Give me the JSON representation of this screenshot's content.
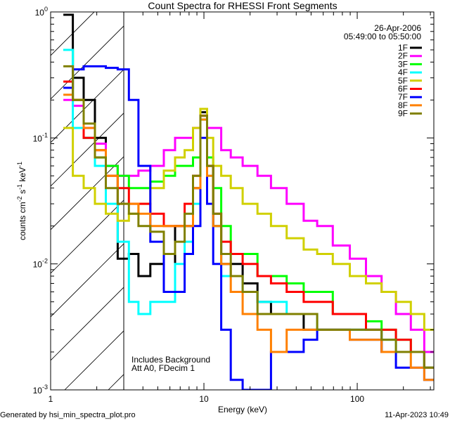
{
  "chart_data": {
    "type": "line",
    "title": "Count Spectra for RHESSI Front Segments",
    "xlabel": "Energy (keV)",
    "ylabel": "counts cm^-2 s^-1 keV^-1",
    "ylabel_parts": {
      "a": "counts cm",
      "b": "-2",
      "c": " s",
      "d": "-1",
      "e": " keV",
      "f": "-1"
    },
    "xscale": "log",
    "yscale": "log",
    "xlim": [
      1,
      316
    ],
    "ylim": [
      0.001,
      1
    ],
    "x_tick_labels": [
      "1",
      "10",
      "100"
    ],
    "y_tick_labels": [
      {
        "base": "10",
        "exp": "0"
      },
      {
        "base": "10",
        "exp": "-1"
      },
      {
        "base": "10",
        "exp": "-2"
      },
      {
        "base": "10",
        "exp": "-3"
      }
    ],
    "date": "26-Apr-2006",
    "time_range": "05:49:00 to 05:50:00",
    "annotations": [
      "Includes Background",
      "Att A0, FDecim 1"
    ],
    "hatched_region_keV": [
      1,
      3
    ],
    "legend_position": "top-right",
    "x": [
      1.3,
      1.5,
      1.8,
      2.1,
      2.5,
      3,
      3.5,
      4,
      5,
      6,
      7,
      8,
      9,
      10,
      11,
      12,
      14,
      16,
      20,
      25,
      30,
      40,
      50,
      60,
      80,
      100,
      130,
      160,
      200,
      250,
      300
    ],
    "series": [
      {
        "name": "1F",
        "color": "#000000",
        "values": [
          0.95,
          0.3,
          0.2,
          0.1,
          0.06,
          0.011,
          0.012,
          0.008,
          0.01,
          0.006,
          0.02,
          0.02,
          0.04,
          0.16,
          0.06,
          0.02,
          0.01,
          0.01,
          0.007,
          0.005,
          0.004,
          0.004,
          0.003,
          0.003,
          0.003,
          0.003,
          0.003,
          0.002,
          0.002,
          0.002,
          0.0015
        ]
      },
      {
        "name": "2F",
        "color": "#ff00ff",
        "values": [
          0.2,
          0.18,
          0.12,
          0.09,
          0.06,
          0.05,
          0.05,
          0.055,
          0.06,
          0.08,
          0.1,
          0.1,
          0.12,
          0.15,
          0.12,
          0.12,
          0.08,
          0.07,
          0.06,
          0.05,
          0.04,
          0.03,
          0.022,
          0.02,
          0.014,
          0.011,
          0.008,
          0.006,
          0.004,
          0.003,
          0.002
        ]
      },
      {
        "name": "3F",
        "color": "#00ff00",
        "values": [
          0.5,
          0.2,
          0.1,
          0.07,
          0.06,
          0.05,
          0.04,
          0.04,
          0.045,
          0.05,
          0.06,
          0.06,
          0.07,
          0.14,
          0.07,
          0.04,
          0.02,
          0.012,
          0.012,
          0.008,
          0.008,
          0.007,
          0.006,
          0.006,
          0.004,
          0.004,
          0.0035,
          0.003,
          0.0025,
          0.002,
          0.0015
        ]
      },
      {
        "name": "4F",
        "color": "#00ffff",
        "values": [
          0.5,
          0.12,
          0.1,
          0.06,
          0.03,
          0.015,
          0.005,
          0.004,
          0.005,
          0.005,
          0.01,
          0.015,
          0.03,
          0.14,
          0.05,
          0.02,
          0.008,
          0.008,
          0.006,
          0.005,
          0.005,
          0.004,
          0.004,
          0.003,
          0.003,
          0.003,
          0.003,
          0.0025,
          0.002,
          0.002,
          0.0015
        ]
      },
      {
        "name": "5F",
        "color": "#d0d000",
        "values": [
          0.12,
          0.05,
          0.04,
          0.03,
          0.025,
          0.022,
          0.025,
          0.03,
          0.04,
          0.055,
          0.07,
          0.08,
          0.12,
          0.17,
          0.1,
          0.06,
          0.05,
          0.04,
          0.03,
          0.025,
          0.02,
          0.016,
          0.013,
          0.012,
          0.01,
          0.008,
          0.007,
          0.006,
          0.005,
          0.004,
          0.003
        ]
      },
      {
        "name": "6F",
        "color": "#ff0000",
        "values": [
          0.28,
          0.2,
          0.1,
          0.08,
          0.05,
          0.04,
          0.03,
          0.03,
          0.025,
          0.02,
          0.02,
          0.03,
          0.05,
          0.15,
          0.06,
          0.025,
          0.015,
          0.012,
          0.01,
          0.008,
          0.007,
          0.006,
          0.005,
          0.005,
          0.004,
          0.004,
          0.003,
          0.003,
          0.0025,
          0.002,
          0.0015
        ]
      },
      {
        "name": "7F",
        "color": "#0000ff",
        "values": [
          0.25,
          0.35,
          0.37,
          0.37,
          0.36,
          0.35,
          0.2,
          0.06,
          0.015,
          0.006,
          0.006,
          0.012,
          0.02,
          0.1,
          0.03,
          0.01,
          0.003,
          0.0012,
          0.001,
          0.001,
          0.002,
          0.002,
          0.0025,
          0.003,
          0.003,
          0.0025,
          0.0025,
          0.002,
          0.0015,
          0.0015,
          0.0012
        ]
      },
      {
        "name": "8F",
        "color": "#ff8000",
        "values": [
          0.22,
          0.2,
          0.12,
          0.08,
          0.05,
          0.03,
          0.03,
          0.025,
          0.02,
          0.02,
          0.02,
          0.02,
          0.04,
          0.14,
          0.05,
          0.02,
          0.01,
          0.006,
          0.004,
          0.003,
          0.002,
          0.003,
          0.003,
          0.003,
          0.003,
          0.0025,
          0.0025,
          0.002,
          0.002,
          0.0015,
          0.0012
        ]
      },
      {
        "name": "9F",
        "color": "#808000",
        "values": [
          0.37,
          0.2,
          0.13,
          0.07,
          0.04,
          0.03,
          0.025,
          0.02,
          0.018,
          0.012,
          0.015,
          0.025,
          0.05,
          0.15,
          0.06,
          0.025,
          0.012,
          0.008,
          0.006,
          0.004,
          0.004,
          0.004,
          0.004,
          0.003,
          0.003,
          0.003,
          0.003,
          0.0025,
          0.002,
          0.002,
          0.0015
        ]
      }
    ]
  },
  "footer": {
    "generated_by": "Generated by hsi_min_spectra_plot.pro",
    "timestamp": "11-Apr-2023 10:49"
  }
}
